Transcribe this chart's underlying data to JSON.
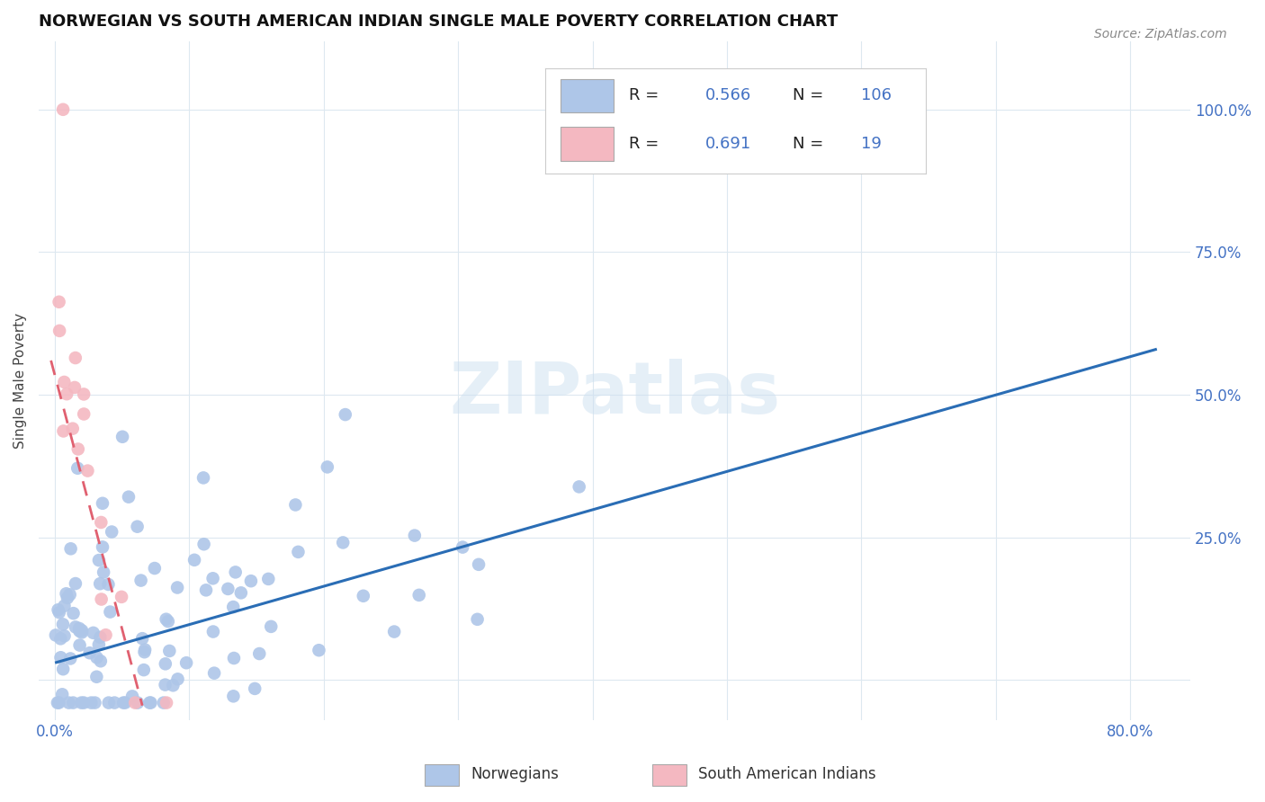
{
  "title": "NORWEGIAN VS SOUTH AMERICAN INDIAN SINGLE MALE POVERTY CORRELATION CHART",
  "source": "Source: ZipAtlas.com",
  "ylabel": "Single Male Poverty",
  "norwegian_R": "0.566",
  "norwegian_N": "106",
  "sa_indian_R": "0.691",
  "sa_indian_N": "19",
  "norwegian_color": "#aec6e8",
  "norwegian_line_color": "#2a6db5",
  "sa_indian_color": "#f4b8c1",
  "sa_indian_line_color": "#e06070",
  "watermark": "ZIPatlas",
  "background_color": "#ffffff",
  "grid_color": "#dde8f0",
  "xlim": [
    -0.012,
    0.845
  ],
  "ylim": [
    -0.07,
    1.12
  ],
  "x_tick_vals": [
    0.0,
    0.1,
    0.2,
    0.3,
    0.4,
    0.5,
    0.6,
    0.7,
    0.8
  ],
  "x_tick_labels": [
    "0.0%",
    "",
    "",
    "",
    "",
    "",
    "",
    "",
    "80.0%"
  ],
  "y_tick_vals": [
    0.0,
    0.25,
    0.5,
    0.75,
    1.0
  ],
  "y_tick_labels": [
    "",
    "25.0%",
    "50.0%",
    "75.0%",
    "100.0%"
  ],
  "nor_trend_x": [
    0.0,
    0.82
  ],
  "nor_trend_y": [
    0.03,
    0.58
  ],
  "sa_trend_x": [
    -0.003,
    0.065
  ],
  "sa_trend_y": [
    0.56,
    -0.045
  ],
  "label_color": "#4472c4",
  "title_color": "#111111",
  "source_color": "#888888"
}
